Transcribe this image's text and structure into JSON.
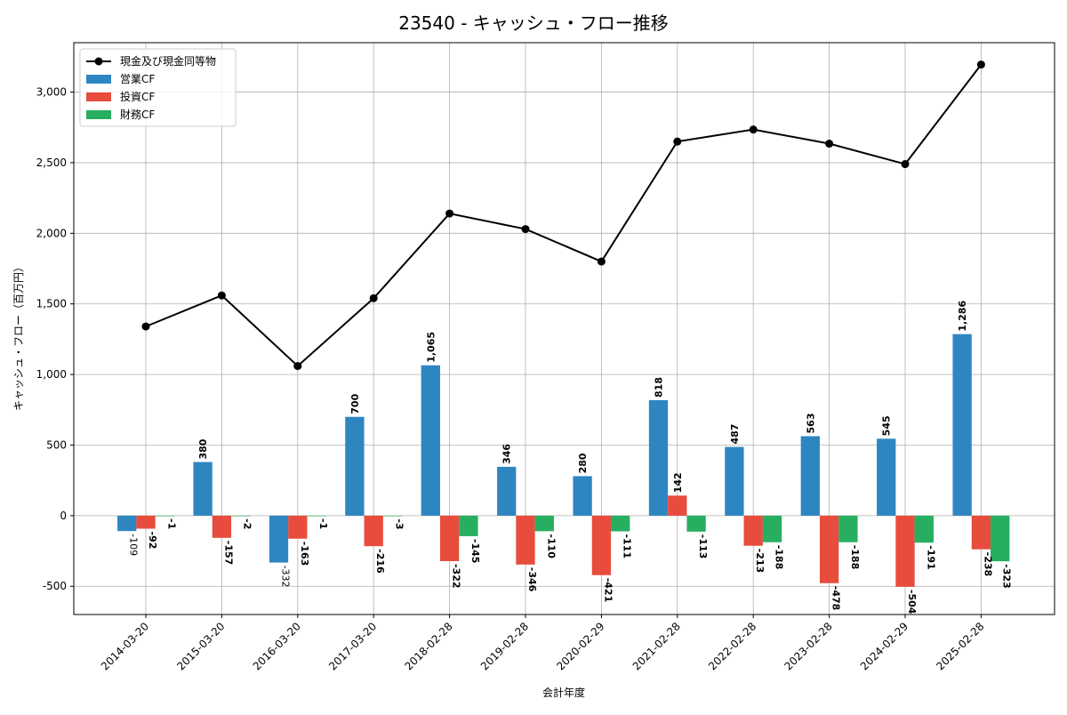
{
  "chart_data": {
    "type": "bar",
    "title": "23540 - キャッシュ・フロー推移",
    "xlabel": "会計年度",
    "ylabel": "キャッシュ・フロー（百万円）",
    "categories": [
      "2014-03-20",
      "2015-03-20",
      "2016-03-20",
      "2017-03-20",
      "2018-02-28",
      "2019-02-28",
      "2020-02-29",
      "2021-02-28",
      "2022-02-28",
      "2023-02-28",
      "2024-02-29",
      "2025-02-28"
    ],
    "ylim": [
      -700,
      3350
    ],
    "yticks": [
      -500,
      0,
      500,
      1000,
      1500,
      2000,
      2500,
      3000
    ],
    "ytick_labels": [
      "-500",
      "0",
      "500",
      "1,000",
      "1,500",
      "2,000",
      "2,500",
      "3,000"
    ],
    "grid": true,
    "legend_position": "upper left",
    "series": [
      {
        "name": "営業CF",
        "kind": "bar",
        "color": "#2e86c1",
        "values": [
          -109,
          380,
          -332,
          700,
          1065,
          346,
          280,
          818,
          487,
          563,
          545,
          1286
        ],
        "labels": [
          "-109",
          "380",
          "-332",
          "700",
          "1,065",
          "346",
          "280",
          "818",
          "487",
          "563",
          "545",
          "1,286"
        ]
      },
      {
        "name": "投資CF",
        "kind": "bar",
        "color": "#e74c3c",
        "values": [
          -92,
          -157,
          -163,
          -216,
          -322,
          -346,
          -421,
          142,
          -213,
          -478,
          -504,
          -238
        ],
        "labels": [
          "-92",
          "-157",
          "-163",
          "-216",
          "-322",
          "-346",
          "-421",
          "142",
          "-213",
          "-478",
          "-504",
          "-238"
        ]
      },
      {
        "name": "財務CF",
        "kind": "bar",
        "color": "#27ae60",
        "values": [
          -1,
          -2,
          -1,
          -3,
          -145,
          -110,
          -111,
          -113,
          -188,
          -188,
          -191,
          -323
        ],
        "labels": [
          "-1",
          "-2",
          "-1",
          "-3",
          "-145",
          "-110",
          "-111",
          "-113",
          "-188",
          "-188",
          "-191",
          "-323"
        ]
      },
      {
        "name": "現金及び現金同等物",
        "kind": "line",
        "color": "#000000",
        "values": [
          1340,
          1560,
          1060,
          1540,
          2140,
          2030,
          1800,
          2650,
          2735,
          2635,
          2490,
          3195
        ]
      }
    ]
  }
}
